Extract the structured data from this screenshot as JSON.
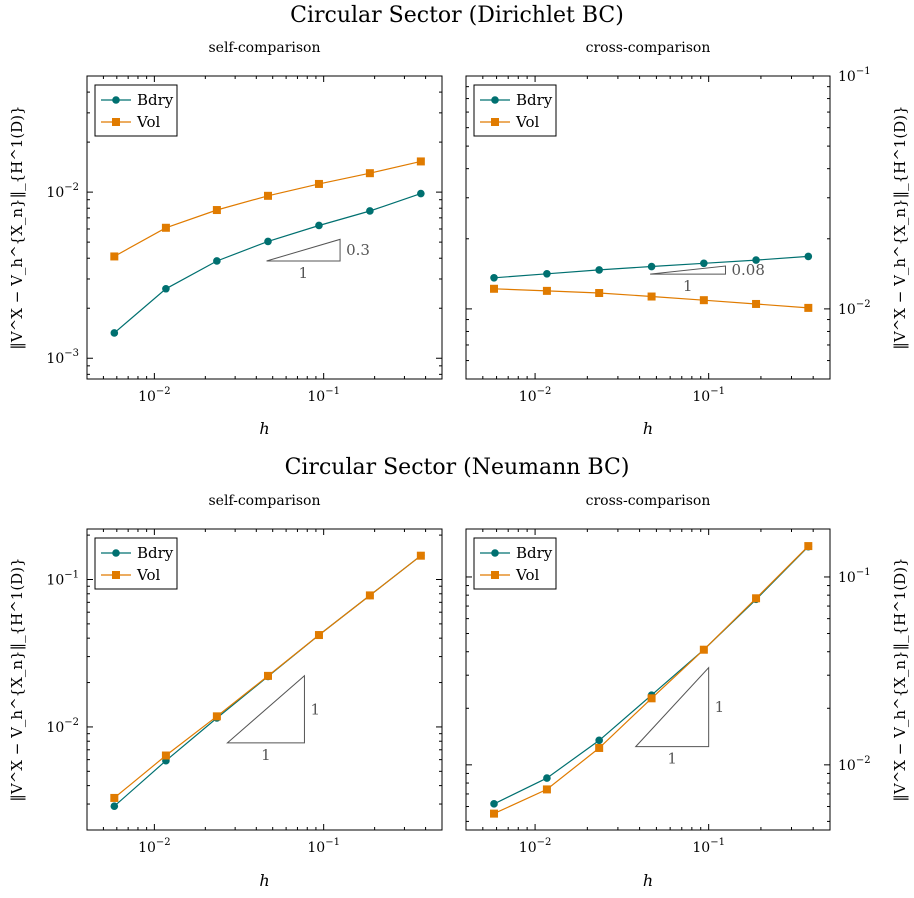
{
  "rows": [
    {
      "title": "Circular Sector (Dirichlet BC)"
    },
    {
      "title": "Circular Sector (Neumann BC)"
    }
  ],
  "ylabel_html": "‖𝒱ˣ − 𝒱ₕ^{Xₙ}‖_{H¹(D)}",
  "chart_data": [
    {
      "type": "line",
      "title": "self-comparison",
      "group": "Circular Sector (Dirichlet BC)",
      "xlabel": "h",
      "ylabel": "‖V^X − V_h^{X_n}‖_{H^1(D)}",
      "xscale": "log",
      "yscale": "log",
      "xlim": [
        0.004,
        0.5
      ],
      "ylim": [
        0.00075,
        0.05
      ],
      "xticks": [
        {
          "v": 0.01,
          "label": "10",
          "exp": "−2"
        },
        {
          "v": 0.1,
          "label": "10",
          "exp": "−1"
        }
      ],
      "yticks": [
        {
          "v": 0.001,
          "label": "10",
          "exp": "−3"
        },
        {
          "v": 0.01,
          "label": "10",
          "exp": "−2"
        }
      ],
      "yaxis_side": "left",
      "legend": "top-left",
      "series": [
        {
          "name": "Bdry",
          "color": "#007070",
          "marker": "circle",
          "x": [
            0.0058,
            0.0117,
            0.0234,
            0.0469,
            0.0938,
            0.1875,
            0.375
          ],
          "y": [
            0.00142,
            0.00262,
            0.00385,
            0.00505,
            0.0063,
            0.0077,
            0.0098
          ]
        },
        {
          "name": "Vol",
          "color": "#e07b00",
          "marker": "square",
          "x": [
            0.0058,
            0.0117,
            0.0234,
            0.0469,
            0.0938,
            0.1875,
            0.375
          ],
          "y": [
            0.0041,
            0.0061,
            0.0078,
            0.0095,
            0.0112,
            0.013,
            0.0153
          ]
        }
      ],
      "slope_triangle": {
        "x0": 0.046,
        "x1": 0.125,
        "y0": 0.00385,
        "rate": 0.3,
        "run_label": "1",
        "rise_label": "0.3"
      }
    },
    {
      "type": "line",
      "title": "cross-comparison",
      "group": "Circular Sector (Dirichlet BC)",
      "xlabel": "h",
      "ylabel": "‖V^X − V_h^{X_n}‖_{H^1(D)}",
      "xscale": "log",
      "yscale": "log",
      "xlim": [
        0.004,
        0.5
      ],
      "ylim": [
        0.005,
        0.1
      ],
      "xticks": [
        {
          "v": 0.01,
          "label": "10",
          "exp": "−2"
        },
        {
          "v": 0.1,
          "label": "10",
          "exp": "−1"
        }
      ],
      "yticks": [
        {
          "v": 0.01,
          "label": "10",
          "exp": "−2"
        },
        {
          "v": 0.1,
          "label": "10",
          "exp": "−1"
        }
      ],
      "yaxis_side": "right",
      "legend": "top-left",
      "series": [
        {
          "name": "Bdry",
          "color": "#007070",
          "marker": "circle",
          "x": [
            0.0058,
            0.0117,
            0.0234,
            0.0469,
            0.0938,
            0.1875,
            0.375
          ],
          "y": [
            0.0136,
            0.01415,
            0.0147,
            0.0152,
            0.0157,
            0.0162,
            0.0168
          ]
        },
        {
          "name": "Vol",
          "color": "#e07b00",
          "marker": "square",
          "x": [
            0.0058,
            0.0117,
            0.0234,
            0.0469,
            0.0938,
            0.1875,
            0.375
          ],
          "y": [
            0.0122,
            0.01195,
            0.0117,
            0.0113,
            0.0109,
            0.0105,
            0.0101
          ]
        }
      ],
      "slope_triangle": {
        "x0": 0.046,
        "x1": 0.125,
        "y0": 0.0141,
        "rate": 0.08,
        "run_label": "1",
        "rise_label": "0.08"
      }
    },
    {
      "type": "line",
      "title": "self-comparison",
      "group": "Circular Sector (Neumann BC)",
      "xlabel": "h",
      "ylabel": "‖V^X − V_h^{X_n}‖_{H^1(D)}",
      "xscale": "log",
      "yscale": "log",
      "xlim": [
        0.004,
        0.5
      ],
      "ylim": [
        0.002,
        0.22
      ],
      "xticks": [
        {
          "v": 0.01,
          "label": "10",
          "exp": "−2"
        },
        {
          "v": 0.1,
          "label": "10",
          "exp": "−1"
        }
      ],
      "yticks": [
        {
          "v": 0.01,
          "label": "10",
          "exp": "−2"
        },
        {
          "v": 0.1,
          "label": "10",
          "exp": "−1"
        }
      ],
      "yaxis_side": "left",
      "legend": "top-left",
      "series": [
        {
          "name": "Bdry",
          "color": "#007070",
          "marker": "circle",
          "x": [
            0.0058,
            0.0117,
            0.0234,
            0.0469,
            0.0938,
            0.1875,
            0.375
          ],
          "y": [
            0.0029,
            0.0059,
            0.0115,
            0.022,
            0.042,
            0.078,
            0.145
          ]
        },
        {
          "name": "Vol",
          "color": "#e07b00",
          "marker": "square",
          "x": [
            0.0058,
            0.0117,
            0.0234,
            0.0469,
            0.0938,
            0.1875,
            0.375
          ],
          "y": [
            0.0033,
            0.0064,
            0.0118,
            0.0222,
            0.042,
            0.078,
            0.145
          ]
        }
      ],
      "slope_triangle": {
        "x0": 0.027,
        "x1": 0.077,
        "y0": 0.0078,
        "rate": 1,
        "run_label": "1",
        "rise_label": "1"
      }
    },
    {
      "type": "line",
      "title": "cross-comparison",
      "group": "Circular Sector (Neumann BC)",
      "xlabel": "h",
      "ylabel": "‖V^X − V_h^{X_n}‖_{H^1(D)}",
      "xscale": "log",
      "yscale": "log",
      "xlim": [
        0.004,
        0.5
      ],
      "ylim": [
        0.0045,
        0.18
      ],
      "xticks": [
        {
          "v": 0.01,
          "label": "10",
          "exp": "−2"
        },
        {
          "v": 0.1,
          "label": "10",
          "exp": "−1"
        }
      ],
      "yticks": [
        {
          "v": 0.01,
          "label": "10",
          "exp": "−2"
        },
        {
          "v": 0.1,
          "label": "10",
          "exp": "−1"
        }
      ],
      "yaxis_side": "right",
      "legend": "top-left",
      "series": [
        {
          "name": "Bdry",
          "color": "#007070",
          "marker": "circle",
          "x": [
            0.0058,
            0.0117,
            0.0234,
            0.0469,
            0.0938,
            0.1875,
            0.375
          ],
          "y": [
            0.0062,
            0.0085,
            0.0135,
            0.0235,
            0.041,
            0.076,
            0.145
          ]
        },
        {
          "name": "Vol",
          "color": "#e07b00",
          "marker": "square",
          "x": [
            0.0058,
            0.0117,
            0.0234,
            0.0469,
            0.0938,
            0.1875,
            0.375
          ],
          "y": [
            0.0055,
            0.0074,
            0.0123,
            0.0226,
            0.041,
            0.077,
            0.146
          ]
        }
      ],
      "slope_triangle": {
        "x0": 0.038,
        "x1": 0.1,
        "y0": 0.0125,
        "rate": 1,
        "run_label": "1",
        "rise_label": "1"
      }
    }
  ]
}
